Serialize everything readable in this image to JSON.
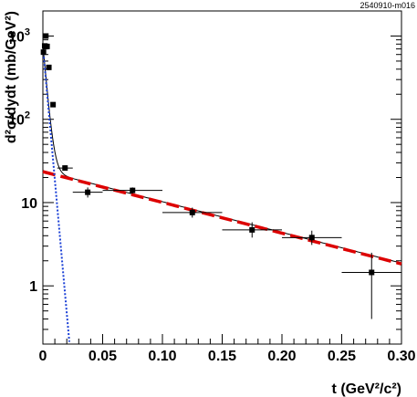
{
  "chart_data": {
    "type": "scatter",
    "figure_tag": "2540910-m016",
    "xlabel": "t (GeV²/c²)",
    "ylabel": "d²σ/dydt (mb/GeV²)",
    "xlim": [
      0,
      0.3
    ],
    "ylim": [
      0.2,
      2000
    ],
    "yscale": "log",
    "grid": false,
    "x_ticks": [
      {
        "value": 0,
        "label": "0"
      },
      {
        "value": 0.05,
        "label": "0.05"
      },
      {
        "value": 0.1,
        "label": "0.10"
      },
      {
        "value": 0.15,
        "label": "0.15"
      },
      {
        "value": 0.2,
        "label": "0.20"
      },
      {
        "value": 0.25,
        "label": "0.25"
      },
      {
        "value": 0.3,
        "label": "0.30"
      }
    ],
    "y_ticks": [
      {
        "value": 1,
        "label": "1"
      },
      {
        "value": 10,
        "label": "10"
      },
      {
        "value": 100,
        "label": "10",
        "exp": "2"
      },
      {
        "value": 1000,
        "label": "10",
        "exp": "3"
      }
    ],
    "points": [
      {
        "x": 0.0005,
        "y": 640,
        "xerr": 0.0005,
        "ylo": 600,
        "yhi": 690
      },
      {
        "x": 0.0015,
        "y": 760,
        "xerr": 0.0005,
        "ylo": 720,
        "yhi": 800
      },
      {
        "x": 0.0025,
        "y": 1000,
        "xerr": 0.0005,
        "ylo": 940,
        "yhi": 1060
      },
      {
        "x": 0.0035,
        "y": 750,
        "xerr": 0.0005,
        "ylo": 700,
        "yhi": 800
      },
      {
        "x": 0.005,
        "y": 420,
        "xerr": 0.001,
        "ylo": 390,
        "yhi": 450
      },
      {
        "x": 0.0085,
        "y": 150,
        "xerr": 0.0015,
        "ylo": 142,
        "yhi": 158
      },
      {
        "x": 0.0185,
        "y": 26,
        "xerr": 0.0065,
        "ylo": 24.5,
        "yhi": 28
      },
      {
        "x": 0.0375,
        "y": 13.3,
        "xerr": 0.0125,
        "ylo": 11.5,
        "yhi": 15.2
      },
      {
        "x": 0.075,
        "y": 14,
        "xerr": 0.025,
        "ylo": 12.8,
        "yhi": 15.2
      },
      {
        "x": 0.125,
        "y": 7.6,
        "xerr": 0.025,
        "ylo": 6.6,
        "yhi": 8.7
      },
      {
        "x": 0.175,
        "y": 4.7,
        "xerr": 0.025,
        "ylo": 3.8,
        "yhi": 5.8
      },
      {
        "x": 0.225,
        "y": 3.8,
        "xerr": 0.025,
        "ylo": 3.1,
        "yhi": 4.6
      },
      {
        "x": 0.275,
        "y": 1.45,
        "xerr": 0.025,
        "ylo": 0.4,
        "yhi": 2.5
      }
    ],
    "curves": [
      {
        "style": "black-solid",
        "color": "#000000",
        "steep_amp": 760,
        "steep_slope": 370,
        "flat_amp": 24,
        "flat_slope": 8.5
      },
      {
        "style": "red-dashed",
        "color": "#dd0000",
        "amp": 23.5,
        "slope": 8.5,
        "xrange": [
          0,
          0.3
        ]
      },
      {
        "style": "blue-dotted",
        "color": "#1a3fd6",
        "amp": 760,
        "slope": 370,
        "xrange": [
          0,
          0.031
        ]
      }
    ]
  }
}
